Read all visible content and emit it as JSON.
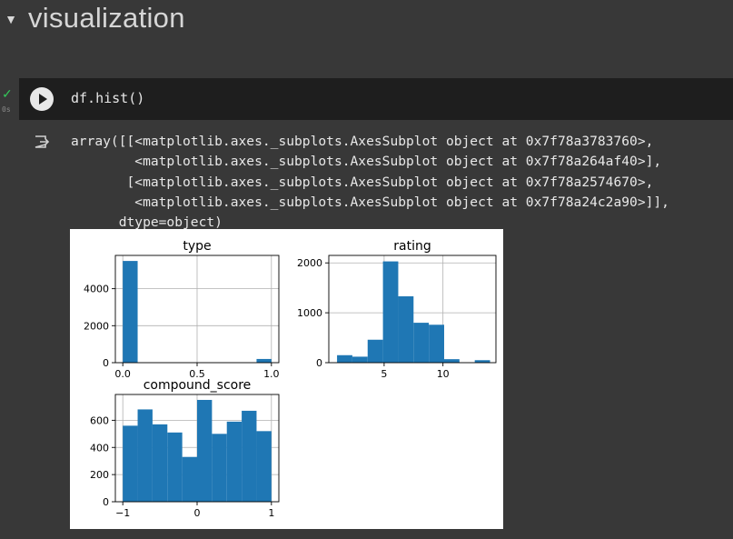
{
  "section": {
    "title": "visualization"
  },
  "cell": {
    "status_time": "0s",
    "code": "df.hist()"
  },
  "output": {
    "lines": [
      "array([[<matplotlib.axes._subplots.AxesSubplot object at 0x7f78a3783760>,",
      "        <matplotlib.axes._subplots.AxesSubplot object at 0x7f78a264af40>],",
      "       [<matplotlib.axes._subplots.AxesSubplot object at 0x7f78a2574670>,",
      "        <matplotlib.axes._subplots.AxesSubplot object at 0x7f78a24c2a90>]],",
      "      dtype=object)"
    ]
  },
  "colors": {
    "bar": "#1f77b4",
    "grid": "#b0b0b0",
    "background": "#383838"
  },
  "chart_data": [
    {
      "type": "bar",
      "title": "type",
      "xlim": [
        -0.05,
        1.05
      ],
      "ylim": [
        0,
        5800
      ],
      "xticks": [
        0.0,
        0.5,
        1.0
      ],
      "xtick_labels": [
        "0.0",
        "0.5",
        "1.0"
      ],
      "yticks": [
        0,
        2000,
        4000
      ],
      "ytick_labels": [
        "0",
        "2000",
        "4000"
      ],
      "bin_edges": [
        0.0,
        0.1,
        0.2,
        0.3,
        0.4,
        0.5,
        0.6,
        0.7,
        0.8,
        0.9,
        1.0
      ],
      "values": [
        5500,
        0,
        0,
        0,
        0,
        0,
        0,
        0,
        0,
        200
      ],
      "grid": true
    },
    {
      "type": "bar",
      "title": "rating",
      "xlim": [
        0.3,
        14.5
      ],
      "ylim": [
        0,
        2150
      ],
      "xticks": [
        5,
        10
      ],
      "xtick_labels": [
        "5",
        "10"
      ],
      "yticks": [
        0,
        1000,
        2000
      ],
      "ytick_labels": [
        "0",
        "1000",
        "2000"
      ],
      "bin_edges": [
        1.0,
        2.3,
        3.6,
        4.9,
        6.2,
        7.5,
        8.8,
        10.1,
        11.4,
        12.7,
        14.0
      ],
      "values": [
        150,
        120,
        460,
        2030,
        1330,
        800,
        760,
        70,
        0,
        50
      ],
      "grid": true
    },
    {
      "type": "bar",
      "title": "compound_score",
      "xlim": [
        -1.1,
        1.1
      ],
      "ylim": [
        0,
        790
      ],
      "xticks": [
        -1,
        0,
        1
      ],
      "xtick_labels": [
        "−1",
        "0",
        "1"
      ],
      "yticks": [
        0,
        200,
        400,
        600
      ],
      "ytick_labels": [
        "0",
        "200",
        "400",
        "600"
      ],
      "bin_edges": [
        -1.0,
        -0.8,
        -0.6,
        -0.4,
        -0.2,
        0.0,
        0.2,
        0.4,
        0.6,
        0.8,
        1.0
      ],
      "values": [
        560,
        680,
        570,
        510,
        330,
        750,
        500,
        590,
        670,
        520
      ],
      "grid": true
    }
  ]
}
